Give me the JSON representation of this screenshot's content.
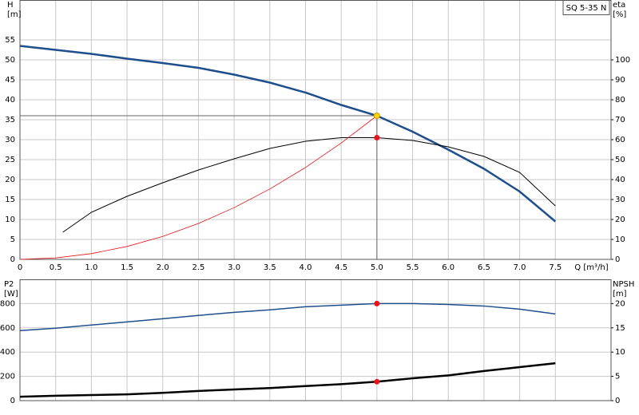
{
  "chart_data": [
    {
      "type": "line",
      "title": "SQ 5-35 N",
      "x_label": "Q [m³/h]",
      "y_label": "H",
      "y_unit": "[m]",
      "y2_label": "eta",
      "y2_unit": "[%]",
      "xlim": [
        0,
        8.28
      ],
      "show_xtick_labels": true,
      "xticks": [
        0,
        0.5,
        {
          "value": 1,
          "label": "1.0"
        },
        1.5,
        {
          "value": 2,
          "label": "2.0"
        },
        2.5,
        {
          "value": 3,
          "label": "3.0"
        },
        3.5,
        {
          "value": 4,
          "label": "4.0"
        },
        4.5,
        {
          "value": 5,
          "label": "5.0"
        },
        5.5,
        {
          "value": 6,
          "label": "6.0"
        },
        6.5,
        {
          "value": 7,
          "label": "7.0"
        },
        7.5
      ],
      "ylim": [
        0,
        65
      ],
      "yticks": [
        0,
        5,
        10,
        15,
        20,
        25,
        30,
        35,
        40,
        45,
        50,
        55
      ],
      "y2lim": [
        0,
        130
      ],
      "y2ticks": [
        0,
        10,
        20,
        30,
        40,
        50,
        60,
        70,
        80,
        90,
        100
      ],
      "grid": true,
      "series": [
        {
          "color": "#1f4e8c",
          "width": 2.5,
          "axis": "y",
          "x": [
            0,
            0.5,
            1,
            1.5,
            2,
            2.5,
            3,
            3.5,
            4,
            4.5,
            5,
            5.5,
            6,
            6.5,
            7,
            7.5
          ],
          "values": [
            53.5,
            52.5,
            51.5,
            50.3,
            49.2,
            48,
            46.3,
            44.3,
            41.8,
            38.7,
            36,
            32,
            27.5,
            22.7,
            17,
            9.5
          ]
        },
        {
          "color": "#000000",
          "width": 1,
          "axis": "y2",
          "x": [
            0.6,
            1,
            1.5,
            2,
            2.5,
            3,
            3.5,
            4,
            4.5,
            5,
            5.5,
            6,
            6.5,
            7,
            7.5
          ],
          "values": [
            13.6,
            23.6,
            31.6,
            38.4,
            44.8,
            50.4,
            55.6,
            59.2,
            61,
            61,
            59.6,
            56.4,
            51.6,
            43.6,
            26.8
          ]
        },
        {
          "color": "#e8141c",
          "width": 0.8,
          "axis": "y",
          "x": [
            0,
            0.5,
            1,
            1.5,
            2,
            2.5,
            3,
            3.5,
            4,
            4.5,
            5
          ],
          "values": [
            0,
            0.36,
            1.44,
            3.24,
            5.76,
            9,
            12.96,
            17.64,
            23.04,
            29.16,
            36
          ]
        }
      ],
      "points": [
        {
          "x": 5,
          "y": 36,
          "axis": "y",
          "color": "#ffd700",
          "guides": true
        },
        {
          "x": 5,
          "y": 61,
          "axis": "y2",
          "color": "#e8141c"
        }
      ]
    },
    {
      "type": "line",
      "y_label": "P2",
      "y_unit": "[W]",
      "y2_label": "NPSH",
      "y2_unit": "[m]",
      "xlim": [
        0,
        8.28
      ],
      "show_xtick_labels": false,
      "xticks": [
        0,
        0.5,
        1,
        1.5,
        2,
        2.5,
        3,
        3.5,
        4,
        4.5,
        5,
        5.5,
        6,
        6.5,
        7,
        7.5
      ],
      "ylim": [
        0,
        1000
      ],
      "yticks": [
        0,
        200,
        400,
        600,
        800
      ],
      "y2lim": [
        0,
        25
      ],
      "y2ticks": [
        0,
        5,
        10,
        15,
        20
      ],
      "grid": true,
      "series": [
        {
          "color": "#1f4e8c",
          "width": 1.5,
          "axis": "y",
          "x": [
            0,
            0.5,
            1,
            1.5,
            2,
            2.5,
            3,
            3.5,
            4,
            4.5,
            5,
            5.5,
            6,
            6.5,
            7,
            7.5
          ],
          "values": [
            577,
            597,
            623,
            649,
            675,
            702,
            728,
            748,
            774,
            787,
            800,
            800,
            793,
            780,
            754,
            715
          ]
        },
        {
          "color": "#000000",
          "width": 2.5,
          "axis": "y2",
          "x": [
            0,
            0.5,
            1,
            1.5,
            2,
            2.5,
            3,
            3.5,
            4,
            4.5,
            5,
            5.5,
            6,
            6.5,
            7,
            7.5
          ],
          "values": [
            0.8,
            1,
            1.15,
            1.3,
            1.6,
            2,
            2.3,
            2.6,
            3,
            3.4,
            3.9,
            4.6,
            5.2,
            6.1,
            6.9,
            7.7
          ]
        }
      ],
      "points": [
        {
          "x": 5,
          "y": 800,
          "axis": "y",
          "color": "#e8141c"
        },
        {
          "x": 5,
          "y": 3.9,
          "axis": "y2",
          "color": "#e8141c"
        }
      ]
    }
  ]
}
